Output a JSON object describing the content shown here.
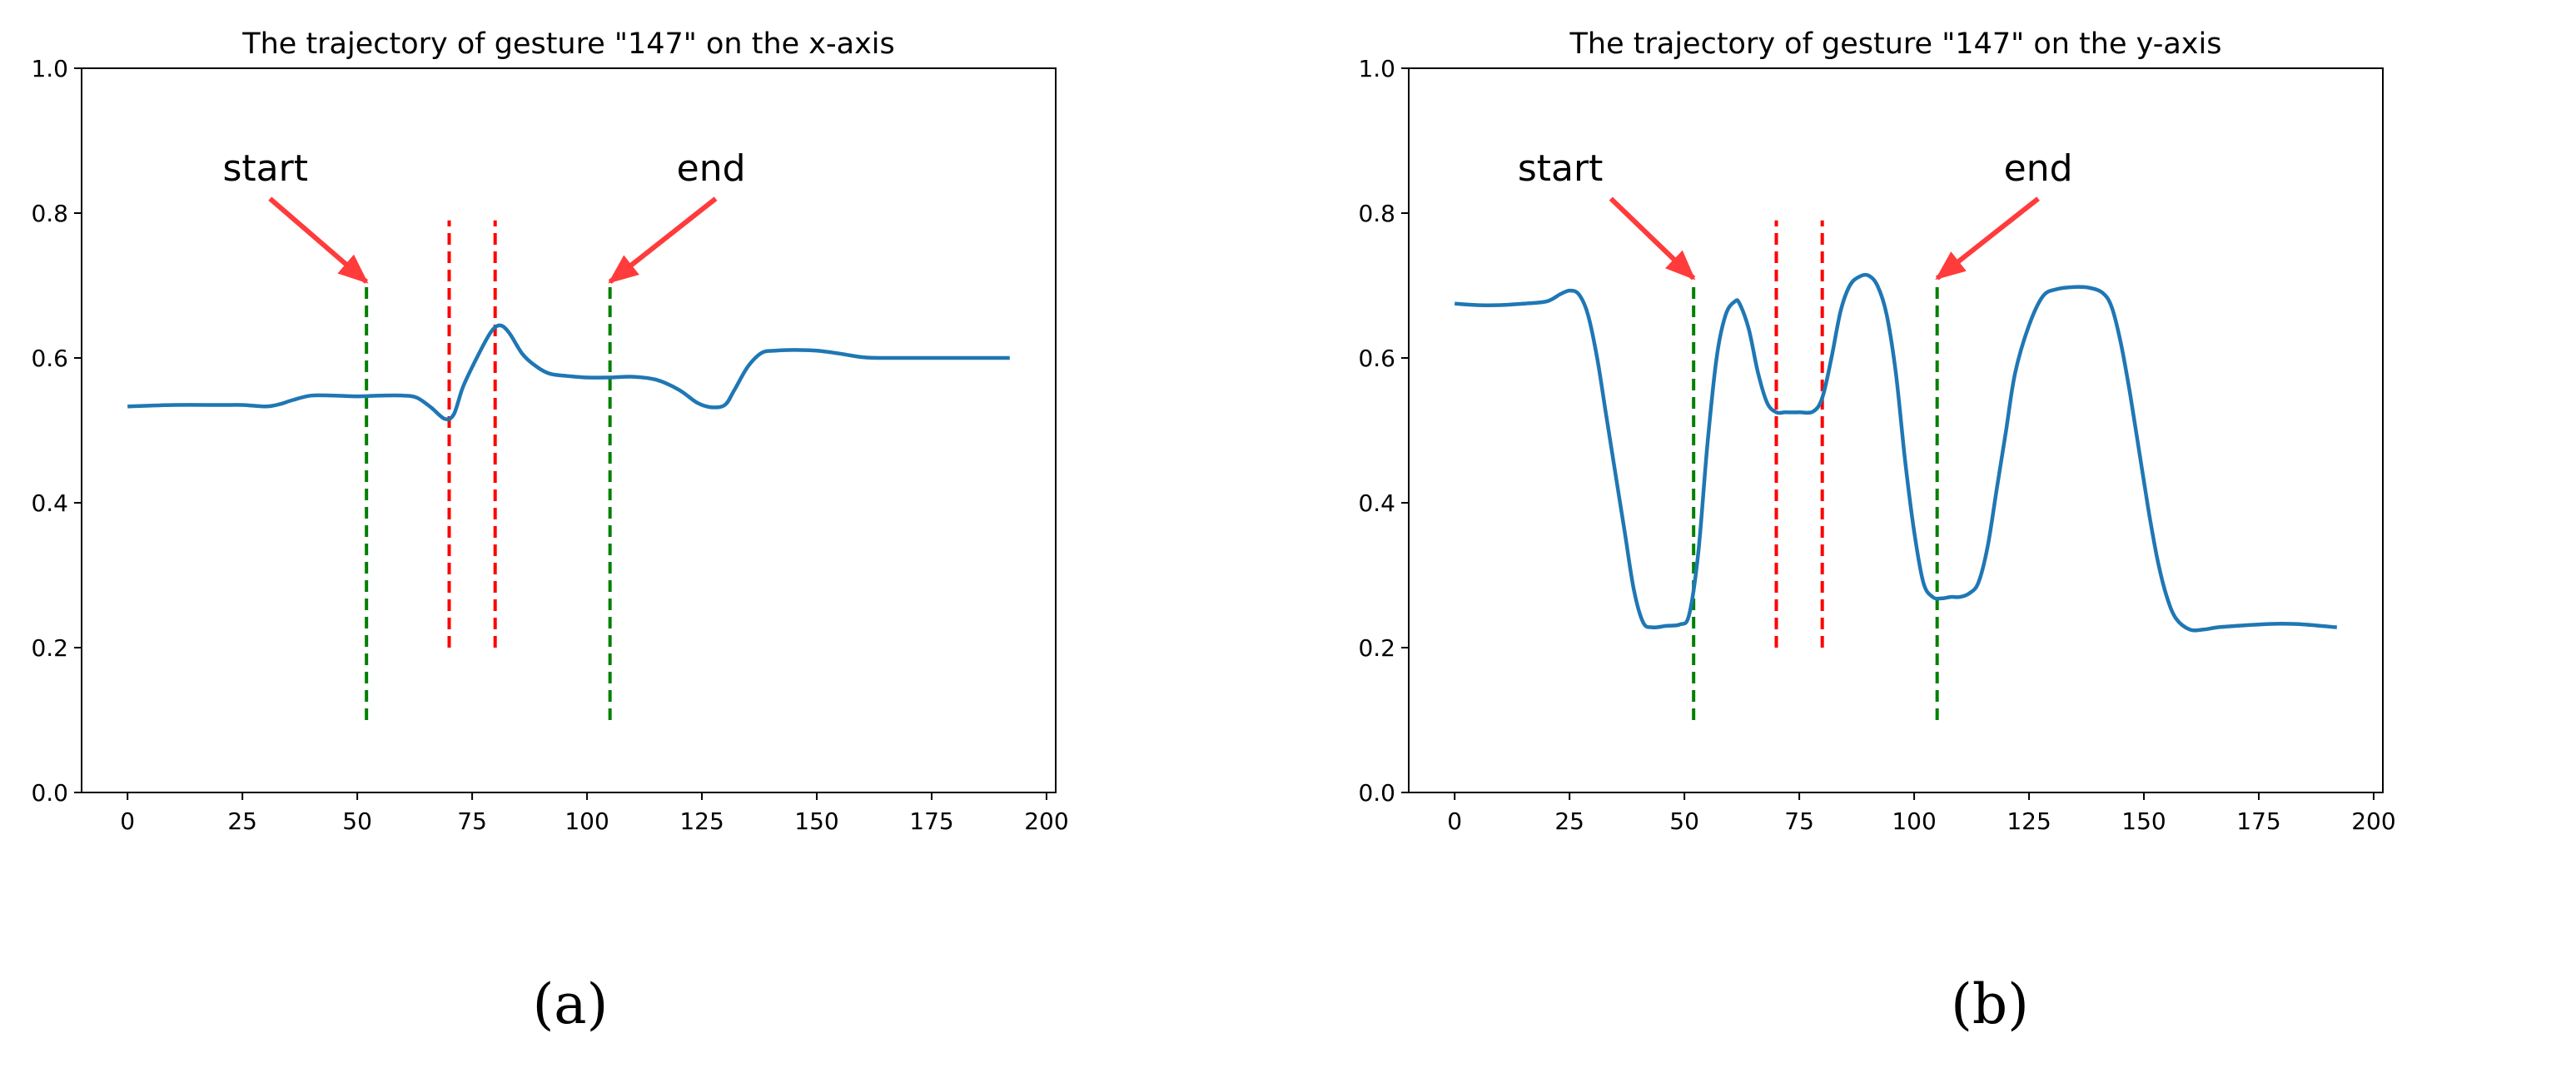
{
  "panels": [
    {
      "label": "(a)",
      "label_letter": "a"
    },
    {
      "label": "(b)",
      "label_letter": "b"
    }
  ],
  "colors": {
    "series": "#1f77b4",
    "start_end_lines": "#008000",
    "middle_lines": "#ff0000",
    "arrows": "#ff3b3b"
  },
  "chart_data": [
    {
      "type": "line",
      "title": "The trajectory of gesture \"147\" on the x-axis",
      "xlabel": "",
      "ylabel": "",
      "xlim": [
        -10,
        202
      ],
      "ylim": [
        0.0,
        1.0
      ],
      "xticks": [
        0,
        25,
        50,
        75,
        100,
        125,
        150,
        175,
        200
      ],
      "yticks": [
        0.0,
        0.2,
        0.4,
        0.6,
        0.8,
        1.0
      ],
      "grid": false,
      "series": [
        {
          "x": [
            0,
            10,
            20,
            25,
            30,
            33,
            36,
            40,
            45,
            50,
            55,
            60,
            63,
            66,
            69,
            71,
            73,
            76,
            79,
            81,
            83,
            86,
            89,
            92,
            96,
            100,
            105,
            110,
            115,
            120,
            124,
            127,
            130,
            132,
            135,
            138,
            141,
            145,
            150,
            155,
            160,
            165,
            170,
            180,
            192
          ],
          "y": [
            0.533,
            0.535,
            0.535,
            0.535,
            0.533,
            0.536,
            0.542,
            0.548,
            0.548,
            0.547,
            0.548,
            0.548,
            0.545,
            0.532,
            0.516,
            0.522,
            0.56,
            0.6,
            0.635,
            0.645,
            0.635,
            0.605,
            0.588,
            0.578,
            0.575,
            0.573,
            0.573,
            0.574,
            0.57,
            0.556,
            0.538,
            0.532,
            0.535,
            0.555,
            0.588,
            0.607,
            0.61,
            0.611,
            0.61,
            0.606,
            0.601,
            0.6,
            0.6,
            0.6,
            0.6
          ]
        }
      ],
      "vlines": [
        {
          "x": 52,
          "y_range": [
            0.1,
            0.7
          ],
          "color": "green"
        },
        {
          "x": 70,
          "y_range": [
            0.2,
            0.79
          ],
          "color": "red"
        },
        {
          "x": 80,
          "y_range": [
            0.2,
            0.79
          ],
          "color": "red"
        },
        {
          "x": 105,
          "y_range": [
            0.1,
            0.7
          ],
          "color": "green"
        }
      ],
      "annotations": [
        {
          "text": "start",
          "text_at": [
            30,
            0.845
          ],
          "arrow_from": [
            31,
            0.82
          ],
          "arrow_to": [
            52,
            0.705
          ]
        },
        {
          "text": "end",
          "text_at": [
            127,
            0.845
          ],
          "arrow_from": [
            128,
            0.82
          ],
          "arrow_to": [
            105,
            0.705
          ]
        }
      ]
    },
    {
      "type": "line",
      "title": "The trajectory of gesture \"147\" on the y-axis",
      "xlabel": "",
      "ylabel": "",
      "xlim": [
        -10,
        202
      ],
      "ylim": [
        0.0,
        1.0
      ],
      "xticks": [
        0,
        25,
        50,
        75,
        100,
        125,
        150,
        175,
        200
      ],
      "yticks": [
        0.0,
        0.2,
        0.4,
        0.6,
        0.8,
        1.0
      ],
      "grid": false,
      "series": [
        {
          "x": [
            0,
            5,
            10,
            15,
            20,
            23,
            25,
            27,
            29,
            31,
            33,
            35,
            37,
            39,
            41,
            43,
            46,
            49,
            51,
            53,
            55,
            57,
            59,
            61,
            62,
            64,
            66,
            68,
            70,
            72,
            75,
            78,
            80,
            82,
            84,
            86,
            88,
            90,
            92,
            94,
            96,
            98,
            100,
            102,
            104,
            106,
            108,
            110,
            112,
            114,
            116,
            118,
            120,
            122,
            125,
            128,
            131,
            135,
            138,
            141,
            143,
            145,
            147,
            149,
            151,
            153,
            155,
            157,
            160,
            163,
            166,
            170,
            175,
            180,
            185,
            192
          ],
          "y": [
            0.675,
            0.673,
            0.673,
            0.675,
            0.678,
            0.688,
            0.693,
            0.688,
            0.66,
            0.6,
            0.52,
            0.44,
            0.36,
            0.28,
            0.235,
            0.228,
            0.23,
            0.232,
            0.245,
            0.33,
            0.48,
            0.6,
            0.66,
            0.678,
            0.675,
            0.64,
            0.58,
            0.538,
            0.525,
            0.525,
            0.525,
            0.526,
            0.545,
            0.6,
            0.665,
            0.7,
            0.712,
            0.714,
            0.7,
            0.66,
            0.58,
            0.46,
            0.36,
            0.29,
            0.27,
            0.268,
            0.27,
            0.27,
            0.275,
            0.29,
            0.34,
            0.42,
            0.5,
            0.58,
            0.645,
            0.685,
            0.695,
            0.698,
            0.697,
            0.69,
            0.67,
            0.62,
            0.55,
            0.47,
            0.39,
            0.32,
            0.27,
            0.24,
            0.225,
            0.225,
            0.228,
            0.23,
            0.232,
            0.233,
            0.232,
            0.228
          ]
        }
      ],
      "vlines": [
        {
          "x": 52,
          "y_range": [
            0.1,
            0.7
          ],
          "color": "green"
        },
        {
          "x": 70,
          "y_range": [
            0.2,
            0.79
          ],
          "color": "red"
        },
        {
          "x": 80,
          "y_range": [
            0.2,
            0.79
          ],
          "color": "red"
        },
        {
          "x": 105,
          "y_range": [
            0.1,
            0.7
          ],
          "color": "green"
        }
      ],
      "annotations": [
        {
          "text": "start",
          "text_at": [
            23,
            0.845
          ],
          "arrow_from": [
            34,
            0.82
          ],
          "arrow_to": [
            52,
            0.71
          ]
        },
        {
          "text": "end",
          "text_at": [
            127,
            0.845
          ],
          "arrow_from": [
            127,
            0.82
          ],
          "arrow_to": [
            105,
            0.71
          ]
        }
      ]
    }
  ]
}
